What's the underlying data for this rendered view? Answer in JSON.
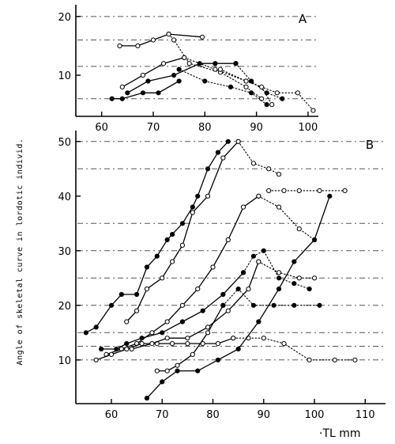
{
  "chart_data": {
    "type": "line",
    "ylabel": "Angle of skeletal curve in lordotic individ.",
    "xlabel": "·TL  mm",
    "panels": [
      {
        "label": "A",
        "xlim": [
          55,
          102
        ],
        "ylim": [
          3,
          22
        ],
        "xticks": [
          60,
          70,
          80,
          90,
          100
        ],
        "yticks": [
          10,
          20
        ],
        "gridlines": [
          20,
          16,
          11.5,
          6
        ],
        "series": [
          {
            "line": "solid",
            "marker": "open",
            "x": [
              63.5,
              67,
              70,
              73,
              79.5
            ],
            "y": [
              15,
              15,
              16,
              17,
              16.5
            ]
          },
          {
            "line": "dotted",
            "marker": "open",
            "x": [
              73,
              74,
              77,
              83,
              88,
              91
            ],
            "y": [
              17,
              16,
              12,
              10.5,
              8,
              6
            ]
          },
          {
            "line": "solid",
            "marker": "filled",
            "x": [
              62,
              64,
              68,
              71,
              75
            ],
            "y": [
              6,
              6,
              7,
              7,
              9
            ]
          },
          {
            "line": "solid",
            "marker": "filled",
            "x": [
              65,
              69,
              74,
              79,
              82,
              86
            ],
            "y": [
              7,
              9,
              10,
              12,
              12,
              12
            ]
          },
          {
            "line": "dotted",
            "marker": "filled",
            "x": [
              86,
              89,
              92,
              95
            ],
            "y": [
              12,
              9,
              7,
              6
            ]
          },
          {
            "line": "solid",
            "marker": "open",
            "x": [
              64,
              68,
              72,
              76
            ],
            "y": [
              8,
              10,
              12,
              13
            ]
          },
          {
            "line": "dotted",
            "marker": "open",
            "x": [
              76,
              82,
              88,
              94,
              98,
              101
            ],
            "y": [
              13,
              11,
              9,
              7,
              7,
              4
            ]
          },
          {
            "line": "dotted",
            "marker": "filled",
            "x": [
              75,
              80,
              85,
              89,
              92
            ],
            "y": [
              11,
              9,
              8,
              7,
              5
            ]
          },
          {
            "line": "dotted",
            "marker": "open",
            "x": [
              83,
              88,
              91,
              93
            ],
            "y": [
              11,
              9,
              8,
              5
            ]
          }
        ]
      },
      {
        "label": "B",
        "xlim": [
          53,
          114
        ],
        "ylim": [
          2,
          52
        ],
        "xticks": [
          60,
          70,
          80,
          90,
          100,
          110
        ],
        "yticks": [
          10,
          20,
          30,
          40,
          50
        ],
        "gridlines": [
          50,
          45,
          35,
          30,
          25,
          20,
          15,
          12.5,
          10
        ],
        "series": [
          {
            "line": "solid",
            "marker": "filled",
            "x": [
              55,
              57,
              60,
              62,
              65,
              67,
              69,
              71,
              72,
              74,
              76,
              77,
              79,
              81,
              83
            ],
            "y": [
              15,
              16,
              20,
              22,
              22,
              27,
              29,
              32,
              33,
              35,
              38,
              40,
              45,
              48,
              50
            ]
          },
          {
            "line": "solid",
            "marker": "open",
            "x": [
              63,
              65,
              67,
              70,
              72,
              74,
              76,
              79,
              82,
              85
            ],
            "y": [
              17,
              19,
              23,
              25,
              28,
              31,
              37,
              40,
              47,
              50
            ]
          },
          {
            "line": "dotted",
            "marker": "open",
            "x": [
              85,
              88,
              91,
              93
            ],
            "y": [
              50,
              46,
              45,
              44
            ]
          },
          {
            "line": "dotted",
            "marker": "open",
            "x": [
              91,
              94,
              97,
              101,
              106
            ],
            "y": [
              41,
              41,
              41,
              41,
              41
            ]
          },
          {
            "line": "solid",
            "marker": "open",
            "x": [
              59,
              62,
              65,
              68,
              71,
              74,
              77,
              80,
              83,
              86,
              89
            ],
            "y": [
              11,
              12,
              13,
              15,
              17,
              20,
              23,
              27,
              32,
              38,
              40
            ]
          },
          {
            "line": "dotted",
            "marker": "open",
            "x": [
              89,
              93,
              97,
              100
            ],
            "y": [
              40,
              38,
              34,
              32
            ]
          },
          {
            "line": "solid",
            "marker": "filled",
            "x": [
              58,
              61,
              63,
              66,
              70,
              74,
              78,
              82,
              86
            ],
            "y": [
              12,
              12,
              13,
              14,
              15,
              17,
              19,
              22,
              26
            ]
          },
          {
            "line": "dotted",
            "marker": "filled",
            "x": [
              86,
              88,
              90,
              93,
              96,
              99
            ],
            "y": [
              26,
              29,
              30,
              25,
              24,
              23
            ]
          },
          {
            "line": "solid",
            "marker": "open",
            "x": [
              57,
              60,
              63,
              66,
              69,
              72,
              75,
              78,
              81,
              84
            ],
            "y": [
              10,
              11,
              12,
              13,
              13,
              13,
              13,
              13,
              13,
              14
            ]
          },
          {
            "line": "dotted",
            "marker": "open",
            "x": [
              84,
              87,
              90,
              94,
              99,
              104,
              108
            ],
            "y": [
              14,
              14,
              14,
              13,
              10,
              10,
              10
            ]
          },
          {
            "line": "solid",
            "marker": "open",
            "x": [
              64,
              68,
              71,
              75,
              79,
              83,
              87,
              89
            ],
            "y": [
              12,
              13,
              14,
              14,
              16,
              19,
              23,
              28
            ]
          },
          {
            "line": "dotted",
            "marker": "open",
            "x": [
              89,
              93,
              97,
              100
            ],
            "y": [
              28,
              26,
              25,
              25
            ]
          },
          {
            "line": "solid",
            "marker": "open",
            "x": [
              69,
              71,
              73,
              76,
              79,
              82
            ],
            "y": [
              8,
              8,
              9,
              11,
              15,
              20
            ]
          },
          {
            "line": "dotted",
            "marker": "filled",
            "x": [
              82,
              85,
              88,
              92,
              96,
              101
            ],
            "y": [
              20,
              23,
              20,
              20,
              20,
              20
            ]
          },
          {
            "line": "solid",
            "marker": "filled",
            "x": [
              67,
              70,
              73,
              77,
              81,
              85,
              89,
              93,
              96,
              100,
              103
            ],
            "y": [
              3,
              6,
              8,
              8,
              10,
              12,
              17,
              23,
              28,
              32,
              40
            ]
          }
        ]
      }
    ]
  }
}
